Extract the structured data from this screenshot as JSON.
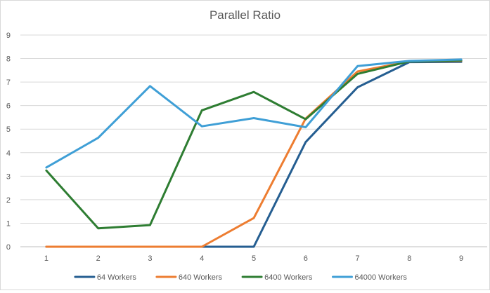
{
  "chart_data": {
    "type": "line",
    "title": "Parallel Ratio",
    "xlabel": "",
    "ylabel": "",
    "x": [
      1,
      2,
      3,
      4,
      5,
      6,
      7,
      8,
      9
    ],
    "xlim": [
      1,
      9
    ],
    "ylim": [
      0,
      9
    ],
    "yticks": [
      0,
      1,
      2,
      3,
      4,
      5,
      6,
      7,
      8,
      9
    ],
    "grid": true,
    "legend": "bottom",
    "series": [
      {
        "name": "64 Workers",
        "color": "#255e91",
        "values": [
          0,
          0,
          0,
          0,
          0,
          4.45,
          6.78,
          7.85,
          7.86
        ]
      },
      {
        "name": "640 Workers",
        "color": "#ed7d31",
        "values": [
          0,
          0,
          0,
          0,
          1.22,
          5.45,
          7.45,
          7.88,
          7.9
        ]
      },
      {
        "name": "6400 Workers",
        "color": "#2e7d32",
        "values": [
          3.24,
          0.78,
          0.92,
          5.8,
          6.58,
          5.42,
          7.35,
          7.88,
          7.92
        ]
      },
      {
        "name": "64000 Workers",
        "color": "#3f9fd6",
        "values": [
          3.37,
          4.63,
          6.83,
          5.12,
          5.47,
          5.08,
          7.68,
          7.9,
          7.96
        ]
      }
    ]
  }
}
